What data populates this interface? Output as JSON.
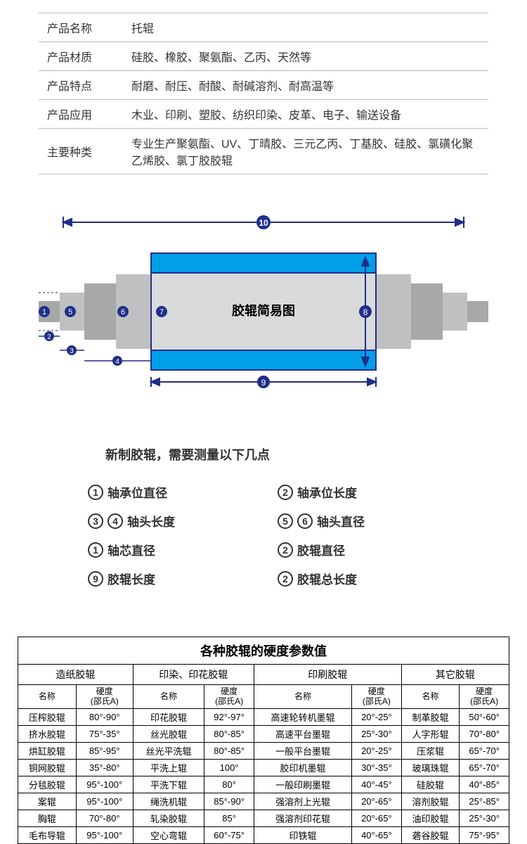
{
  "spec": {
    "rows": [
      {
        "label": "产品名称",
        "value": "托辊"
      },
      {
        "label": "产品材质",
        "value": "硅胶、橡胶、聚氨酯、乙丙、天然等"
      },
      {
        "label": "产品特点",
        "value": "耐磨、耐压、耐酸、耐碱溶剂、耐高温等"
      },
      {
        "label": "产品应用",
        "value": "木业、印刷、塑胶、纺织印染、皮革、电子、输送设备"
      },
      {
        "label": "主要种类",
        "value": "专业生产聚氨酯、UV、丁晴胶、三元乙丙、丁基胶、硅胶、氯磺化聚乙烯胶、氯丁胶胶辊"
      }
    ]
  },
  "diagram": {
    "title": "胶辊简易图",
    "colors": {
      "outline": "#1f2f88",
      "blue_band": "#009fe8",
      "body": "#d9dadb",
      "shaft": "#bfc0c2",
      "shaft2": "#a7a8aa",
      "dim_badge": "#1f2f88",
      "dim_text": "#ffffff",
      "title_text": "#000000"
    },
    "badges": [
      "1",
      "2",
      "3",
      "4",
      "5",
      "6",
      "7",
      "8",
      "9",
      "10"
    ]
  },
  "measure": {
    "title": "新制胶辊，需要测量以下几点",
    "items": [
      {
        "nums": [
          "1"
        ],
        "label": "轴承位直径"
      },
      {
        "nums": [
          "2"
        ],
        "label": "轴承位长度"
      },
      {
        "nums": [
          "3",
          "4"
        ],
        "label": "轴头长度"
      },
      {
        "nums": [
          "5",
          "6"
        ],
        "label": "轴头直径"
      },
      {
        "nums": [
          "1"
        ],
        "label": "轴芯直径"
      },
      {
        "nums": [
          "2"
        ],
        "label": "胶辊直径"
      },
      {
        "nums": [
          "9"
        ],
        "label": "胶辊长度"
      },
      {
        "nums": [
          "2"
        ],
        "label": "胶辊总长度"
      }
    ]
  },
  "hardness": {
    "title": "各种胶辊的硬度参数值",
    "groups": [
      "造纸胶辊",
      "印染、印花胶辊",
      "印刷胶辊",
      "其它胶辊"
    ],
    "heads": [
      "名称",
      "硬度\n(邵氏A)"
    ],
    "rows": [
      [
        "压榨胶辊",
        "80°-90°",
        "印花胶辊",
        "92°-97°",
        "高速轮转机墨辊",
        "20°-25°",
        "制革胶辊",
        "50°-60°"
      ],
      [
        "挤水胶辊",
        "75°-35°",
        "丝光胶辊",
        "80°-85°",
        "高速平台墨辊",
        "25°-30°",
        "人字形辊",
        "70°-80°"
      ],
      [
        "烘缸胶辊",
        "85°-95°",
        "丝光平洗辊",
        "80°-85°",
        "一般平台墨辊",
        "20°-25°",
        "压浆辊",
        "65°-70°"
      ],
      [
        "铜网胶辊",
        "35°-80°",
        "平洗上辊",
        "100°",
        "胶印机墨辊",
        "30°-35°",
        "玻璃珠辊",
        "65°-70°"
      ],
      [
        "分毯胶辊",
        "95°-100°",
        "平洗下辊",
        "80°",
        "一般印刷墨辊",
        "40°-45°",
        "硅胶辊",
        "40°-85°"
      ],
      [
        "案辊",
        "95°-100°",
        "绳洗机辊",
        "85°-90°",
        "强溶剂上光辊",
        "20°-65°",
        "溶剂胶辊",
        "25°-85°"
      ],
      [
        "胸辊",
        "70°-80°",
        "轧染胶辊",
        "85°",
        "强溶剂印花辊",
        "20°-65°",
        "油印胶辊",
        "25°-30°"
      ],
      [
        "毛布导辊",
        "95°-100°",
        "空心弯辊",
        "60°-75°",
        "印铁辊",
        "40°-65°",
        "砻谷胶辊",
        "75°-95°"
      ]
    ]
  }
}
